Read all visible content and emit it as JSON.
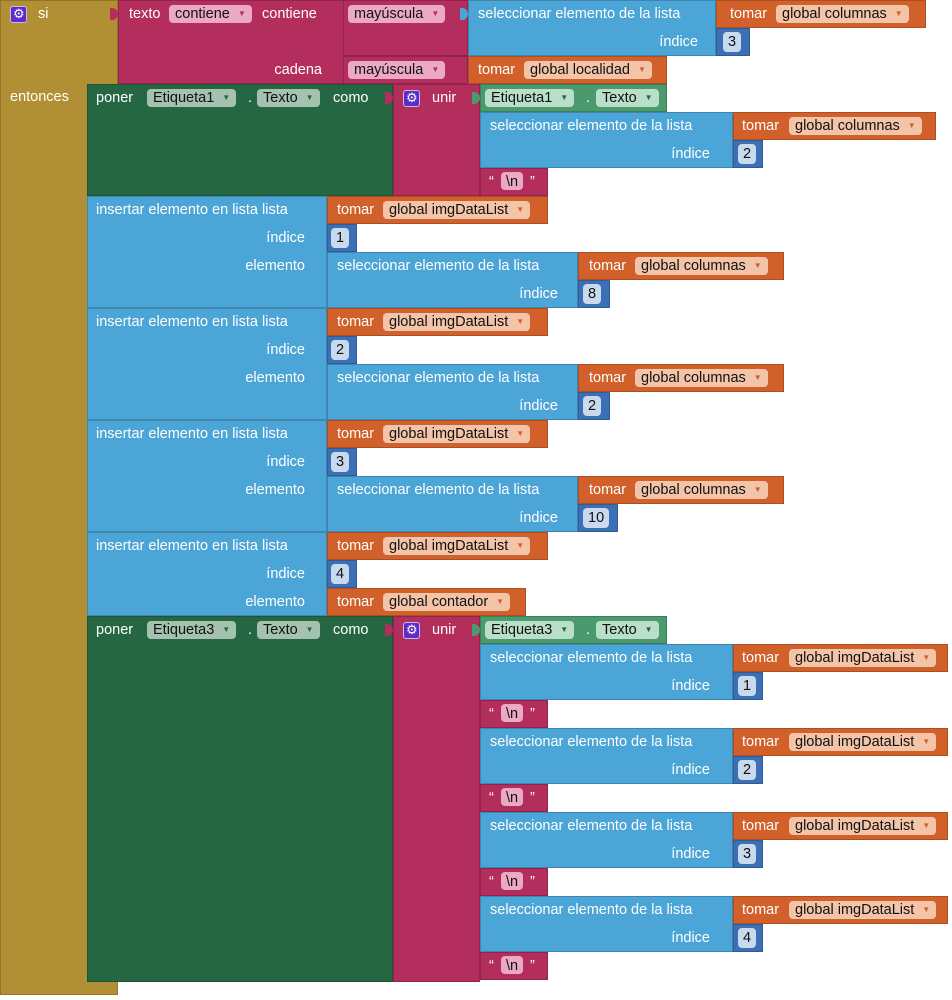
{
  "colors": {
    "control": "#B18F34",
    "text": "#B32D5D",
    "list": "#4BA5D6",
    "variable": "#D2602A",
    "component_setter": "#266743",
    "component_getter": "#4A9A6E",
    "math": "#3B6FB6"
  },
  "if_block": {
    "si": "si",
    "entonces": "entonces",
    "icon": "gear-icon"
  },
  "condition": {
    "texto": "texto",
    "op": "contiene",
    "contiene": "contiene",
    "cadena": "cadena",
    "upcase_a": "mayúscula",
    "upcase_b": "mayúscula",
    "select": {
      "label": "seleccionar elemento de la lista",
      "tomar": "tomar",
      "var": "global columnas",
      "indice": "índice",
      "index": "3"
    },
    "get_cadena": {
      "tomar": "tomar",
      "var": "global localidad"
    }
  },
  "set1": {
    "poner": "poner",
    "component": "Etiqueta1",
    "dot": ".",
    "property": "Texto",
    "como": "como",
    "unir": "unir",
    "getter": {
      "component": "Etiqueta1",
      "dot": ".",
      "property": "Texto"
    },
    "items": [
      {
        "label": "seleccionar elemento de la lista",
        "tomar": "tomar",
        "var": "global columnas",
        "indice": "índice",
        "index": "2",
        "nl_open": "“",
        "nl": "\\n",
        "nl_close": "”"
      }
    ]
  },
  "inserts": [
    {
      "label": "insertar elemento en lista lista",
      "indice": "índice",
      "elemento": "elemento",
      "tomar": "tomar",
      "var": "global imgDataList",
      "index": "1",
      "item": {
        "label": "seleccionar elemento de la lista",
        "tomar": "tomar",
        "var": "global columnas",
        "indice": "índice",
        "index": "8"
      }
    },
    {
      "label": "insertar elemento en lista lista",
      "indice": "índice",
      "elemento": "elemento",
      "tomar": "tomar",
      "var": "global imgDataList",
      "index": "2",
      "item": {
        "label": "seleccionar elemento de la lista",
        "tomar": "tomar",
        "var": "global columnas",
        "indice": "índice",
        "index": "2"
      }
    },
    {
      "label": "insertar elemento en lista lista",
      "indice": "índice",
      "elemento": "elemento",
      "tomar": "tomar",
      "var": "global imgDataList",
      "index": "3",
      "item": {
        "label": "seleccionar elemento de la lista",
        "tomar": "tomar",
        "var": "global columnas",
        "indice": "índice",
        "index": "10"
      }
    },
    {
      "label": "insertar elemento en lista lista",
      "indice": "índice",
      "elemento": "elemento",
      "tomar": "tomar",
      "var": "global imgDataList",
      "index": "4",
      "item": {
        "tomar": "tomar",
        "var": "global contador"
      }
    }
  ],
  "set3": {
    "poner": "poner",
    "component": "Etiqueta3",
    "dot": ".",
    "property": "Texto",
    "como": "como",
    "unir": "unir",
    "getter": {
      "component": "Etiqueta3",
      "dot": ".",
      "property": "Texto"
    },
    "items": [
      {
        "label": "seleccionar elemento de la lista",
        "tomar": "tomar",
        "var": "global imgDataList",
        "indice": "índice",
        "index": "1",
        "nl_open": "“",
        "nl": "\\n",
        "nl_close": "”"
      },
      {
        "label": "seleccionar elemento de la lista",
        "tomar": "tomar",
        "var": "global imgDataList",
        "indice": "índice",
        "index": "2",
        "nl_open": "“",
        "nl": "\\n",
        "nl_close": "”"
      },
      {
        "label": "seleccionar elemento de la lista",
        "tomar": "tomar",
        "var": "global imgDataList",
        "indice": "índice",
        "index": "3",
        "nl_open": "“",
        "nl": "\\n",
        "nl_close": "”"
      },
      {
        "label": "seleccionar elemento de la lista",
        "tomar": "tomar",
        "var": "global imgDataList",
        "indice": "índice",
        "index": "4",
        "nl_open": "“",
        "nl": "\\n",
        "nl_close": "”"
      }
    ]
  }
}
